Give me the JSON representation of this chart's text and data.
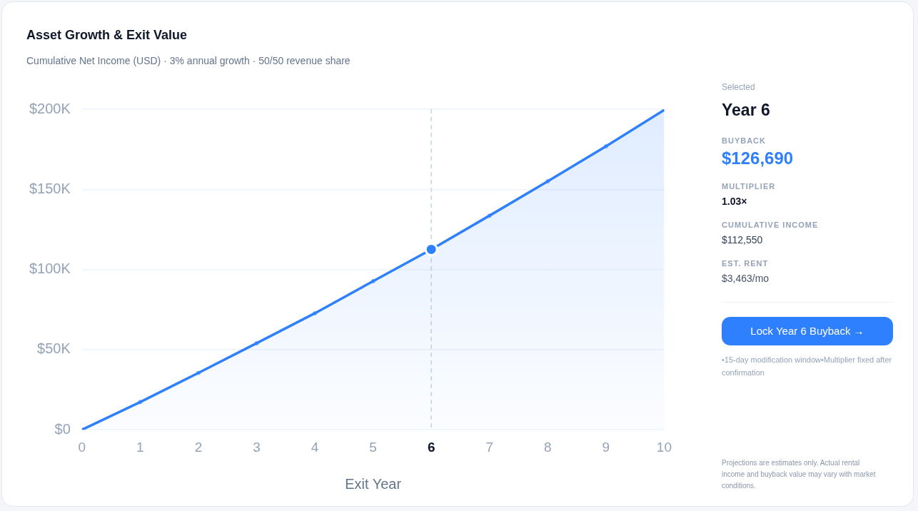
{
  "chart_data": {
    "type": "area",
    "title": "Asset Growth & Exit Value",
    "subtitle": "Cumulative Net Income (USD) · 3% annual growth · 50/50 revenue share",
    "xlabel": "Exit Year",
    "x": [
      0,
      1,
      2,
      3,
      4,
      5,
      6,
      7,
      8,
      9,
      10
    ],
    "series": [
      {
        "color": "#2f80ff",
        "values": [
          0,
          17300,
          35500,
          54000,
          72700,
          92700,
          112550,
          133600,
          155000,
          176800,
          199500
        ]
      },
      {
        "type": "scatter",
        "color": "#2f80ff",
        "x": [
          6
        ],
        "values": [
          112550
        ]
      }
    ],
    "xlim": [
      0,
      10
    ],
    "xticks": [
      0,
      1,
      2,
      3,
      4,
      5,
      6,
      7,
      8,
      9,
      10
    ],
    "ylim": [
      0,
      200000
    ],
    "yticks": [
      {
        "value": 0,
        "label": "$0"
      },
      {
        "value": 50000,
        "label": "$50K"
      },
      {
        "value": 100000,
        "label": "$100K"
      },
      {
        "value": 150000,
        "label": "$150K"
      },
      {
        "value": 200000,
        "label": "$200K"
      }
    ],
    "ref_lines": [
      {
        "axis": "x",
        "value": 6,
        "color": "#bfd6f6",
        "line_style": "dashed"
      }
    ],
    "grid": "y",
    "legend": false,
    "marker": "circle",
    "line_style": "solid",
    "annotations": [
      "Selected",
      "Year 6",
      "BUYBACK",
      "$126,690",
      "MULTIPLIER",
      "1.03×",
      "CUMULATIVE INCOME",
      "$112,550",
      "EST. RENT",
      "$3,463/mo",
      "Lock Year 6 Buyback →",
      "•15-day modification window•Multiplier fixed after confirmation",
      "Projections are estimates only. Actual rental income and buyback value may vary with market conditions."
    ]
  }
}
